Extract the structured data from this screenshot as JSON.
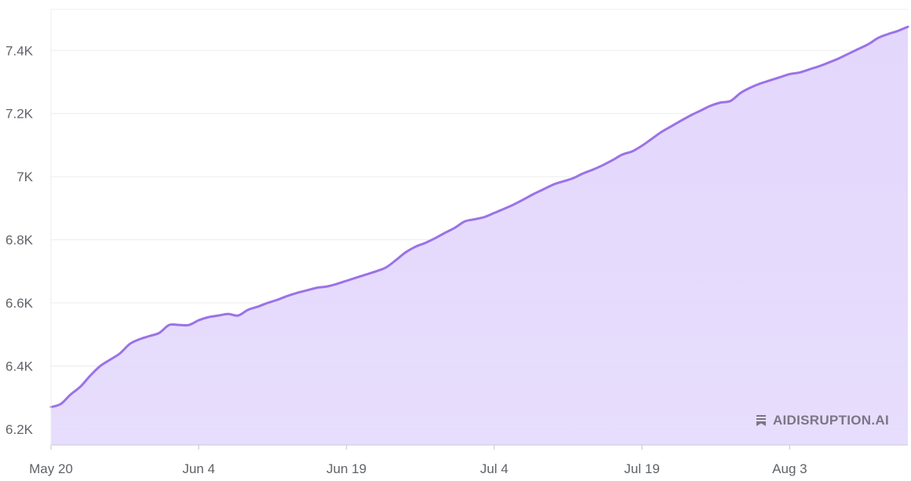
{
  "colors": {
    "line": "#9b72e8",
    "area": "#e3d7fc",
    "grid": "#ececec",
    "axis": "#d6d2e6"
  },
  "watermark": {
    "text": "AIDISRUPTION.AI",
    "icon": "bookmark-stack-icon"
  },
  "chart_data": {
    "type": "area",
    "title": "",
    "xlabel": "",
    "ylabel": "",
    "grid": true,
    "x_range": [
      "2024-05-20",
      "2024-08-15"
    ],
    "ylim": [
      6150,
      7530
    ],
    "x_ticks": [
      {
        "date": "2024-05-20",
        "label": "May 20"
      },
      {
        "date": "2024-06-04",
        "label": "Jun 4"
      },
      {
        "date": "2024-06-19",
        "label": "Jun 19"
      },
      {
        "date": "2024-07-04",
        "label": "Jul 4"
      },
      {
        "date": "2024-07-19",
        "label": "Jul 19"
      },
      {
        "date": "2024-08-03",
        "label": "Aug 3"
      }
    ],
    "y_ticks": [
      {
        "value": 6200,
        "label": "6.2K"
      },
      {
        "value": 6400,
        "label": "6.4K"
      },
      {
        "value": 6600,
        "label": "6.6K"
      },
      {
        "value": 6800,
        "label": "6.8K"
      },
      {
        "value": 7000,
        "label": "7K"
      },
      {
        "value": 7200,
        "label": "7.2K"
      },
      {
        "value": 7400,
        "label": "7.4K"
      }
    ],
    "series": [
      {
        "x": [
          "2024-05-20",
          "2024-05-21",
          "2024-05-22",
          "2024-05-23",
          "2024-05-24",
          "2024-05-25",
          "2024-05-26",
          "2024-05-27",
          "2024-05-28",
          "2024-05-29",
          "2024-05-30",
          "2024-05-31",
          "2024-06-01",
          "2024-06-02",
          "2024-06-03",
          "2024-06-04",
          "2024-06-05",
          "2024-06-06",
          "2024-06-07",
          "2024-06-08",
          "2024-06-09",
          "2024-06-10",
          "2024-06-11",
          "2024-06-12",
          "2024-06-13",
          "2024-06-14",
          "2024-06-15",
          "2024-06-16",
          "2024-06-17",
          "2024-06-18",
          "2024-06-19",
          "2024-06-20",
          "2024-06-21",
          "2024-06-22",
          "2024-06-23",
          "2024-06-24",
          "2024-06-25",
          "2024-06-26",
          "2024-06-27",
          "2024-06-28",
          "2024-06-29",
          "2024-06-30",
          "2024-07-01",
          "2024-07-02",
          "2024-07-03",
          "2024-07-04",
          "2024-07-05",
          "2024-07-06",
          "2024-07-07",
          "2024-07-08",
          "2024-07-09",
          "2024-07-10",
          "2024-07-11",
          "2024-07-12",
          "2024-07-13",
          "2024-07-14",
          "2024-07-15",
          "2024-07-16",
          "2024-07-17",
          "2024-07-18",
          "2024-07-19",
          "2024-07-20",
          "2024-07-21",
          "2024-07-22",
          "2024-07-23",
          "2024-07-24",
          "2024-07-25",
          "2024-07-26",
          "2024-07-27",
          "2024-07-28",
          "2024-07-29",
          "2024-07-30",
          "2024-07-31",
          "2024-08-01",
          "2024-08-02",
          "2024-08-03",
          "2024-08-04",
          "2024-08-05",
          "2024-08-06",
          "2024-08-07",
          "2024-08-08",
          "2024-08-09",
          "2024-08-10",
          "2024-08-11",
          "2024-08-12",
          "2024-08-13",
          "2024-08-14",
          "2024-08-15"
        ],
        "values": [
          6270,
          6280,
          6310,
          6335,
          6370,
          6400,
          6420,
          6440,
          6470,
          6485,
          6495,
          6505,
          6530,
          6530,
          6530,
          6545,
          6555,
          6560,
          6565,
          6560,
          6578,
          6588,
          6600,
          6610,
          6622,
          6632,
          6640,
          6648,
          6652,
          6660,
          6670,
          6680,
          6690,
          6700,
          6712,
          6735,
          6760,
          6778,
          6790,
          6805,
          6822,
          6838,
          6858,
          6865,
          6872,
          6885,
          6898,
          6912,
          6928,
          6945,
          6960,
          6975,
          6985,
          6995,
          7010,
          7022,
          7036,
          7052,
          7070,
          7080,
          7098,
          7120,
          7142,
          7160,
          7178,
          7195,
          7210,
          7225,
          7235,
          7240,
          7265,
          7282,
          7295,
          7305,
          7315,
          7325,
          7330,
          7340,
          7350,
          7362,
          7375,
          7390,
          7405,
          7420,
          7440,
          7452,
          7462,
          7475
        ]
      }
    ]
  }
}
